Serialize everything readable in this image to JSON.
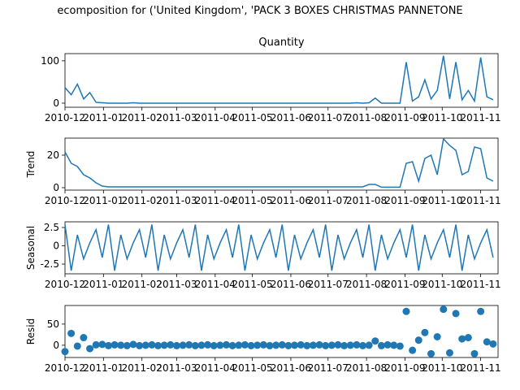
{
  "title": "ecomposition for ('United Kingdom', 'PACK 3 BOXES CHRISTMAS PANNETONE",
  "x": [
    0,
    5,
    10,
    15,
    20,
    25,
    30,
    35,
    40,
    45,
    50,
    55,
    60,
    65,
    70,
    75,
    80,
    85,
    90,
    95,
    100,
    105,
    110,
    115,
    120,
    125,
    130,
    135,
    140,
    145,
    150,
    155,
    160,
    165,
    170,
    175,
    180,
    185,
    190,
    195,
    200,
    205,
    210,
    215,
    220,
    225,
    230,
    235,
    240,
    245,
    250,
    255,
    260,
    265,
    270,
    275,
    280,
    285,
    290,
    295,
    300,
    305,
    310,
    315,
    320,
    325,
    330,
    335,
    340,
    345
  ],
  "xlim": [
    0,
    349
  ],
  "xticks": [
    {
      "value": 0,
      "label": "2010-12"
    },
    {
      "value": 31,
      "label": "2011-01"
    },
    {
      "value": 62,
      "label": "2011-02"
    },
    {
      "value": 90,
      "label": "2011-03"
    },
    {
      "value": 121,
      "label": "2011-04"
    },
    {
      "value": 151,
      "label": "2011-05"
    },
    {
      "value": 182,
      "label": "2011-06"
    },
    {
      "value": 212,
      "label": "2011-07"
    },
    {
      "value": 243,
      "label": "2011-08"
    },
    {
      "value": 274,
      "label": "2011-09"
    },
    {
      "value": 304,
      "label": "2011-10"
    },
    {
      "value": 335,
      "label": "2011-11"
    }
  ],
  "chart_data": [
    {
      "type": "line",
      "title": "Quantity",
      "color": "#1f77b4",
      "ylim": [
        -9.6,
        117
      ],
      "yticks": [
        0,
        100
      ],
      "values": [
        37,
        20,
        45,
        10,
        25,
        2,
        1,
        0,
        0,
        0,
        0,
        1,
        0,
        0,
        0,
        0,
        0,
        0,
        0,
        0,
        0,
        0,
        0,
        0,
        0,
        0,
        0,
        0,
        0,
        0,
        0,
        0,
        0,
        0,
        0,
        0,
        0,
        0,
        0,
        0,
        0,
        0,
        0,
        0,
        0,
        0,
        0,
        1,
        0,
        1,
        12,
        0,
        0,
        0,
        0,
        97,
        5,
        15,
        55,
        10,
        30,
        112,
        10,
        97,
        8,
        30,
        5,
        108,
        15,
        8
      ]
    },
    {
      "type": "line",
      "ylabel": "Trend",
      "color": "#1f77b4",
      "ylim": [
        -1.5,
        30.5
      ],
      "yticks": [
        0,
        20
      ],
      "values": [
        22,
        15,
        13,
        8,
        6,
        3,
        1,
        0.5,
        0.5,
        0.5,
        0.5,
        0.5,
        0.5,
        0.5,
        0.5,
        0.5,
        0.5,
        0.5,
        0.5,
        0.5,
        0.5,
        0.5,
        0.5,
        0.5,
        0.5,
        0.5,
        0.5,
        0.5,
        0.5,
        0.5,
        0.5,
        0.5,
        0.5,
        0.5,
        0.5,
        0.5,
        0.5,
        0.5,
        0.5,
        0.5,
        0.5,
        0.5,
        0.5,
        0.5,
        0.5,
        0.5,
        0.5,
        0.5,
        0.5,
        2,
        2,
        0.3,
        0.3,
        0.3,
        0.3,
        15,
        16,
        4,
        18,
        20,
        8,
        30,
        26,
        23,
        8,
        10,
        25,
        24,
        6,
        4
      ]
    },
    {
      "type": "line",
      "ylabel": "Seasonal",
      "color": "#1f77b4",
      "ylim": [
        -3.83,
        3.28
      ],
      "yticks": [
        -2.5,
        0.0,
        2.5
      ],
      "values": [
        2.9,
        -3.4,
        1.5,
        -1.8,
        0.4,
        2.2,
        -1.6,
        2.9,
        -3.4,
        1.5,
        -1.8,
        0.4,
        2.2,
        -1.6,
        2.9,
        -3.4,
        1.5,
        -1.8,
        0.4,
        2.2,
        -1.6,
        2.9,
        -3.4,
        1.5,
        -1.8,
        0.4,
        2.2,
        -1.6,
        2.9,
        -3.4,
        1.5,
        -1.8,
        0.4,
        2.2,
        -1.6,
        2.9,
        -3.4,
        1.5,
        -1.8,
        0.4,
        2.2,
        -1.6,
        2.9,
        -3.4,
        1.5,
        -1.8,
        0.4,
        2.2,
        -1.6,
        2.9,
        -3.4,
        1.5,
        -1.8,
        0.4,
        2.2,
        -1.6,
        2.9,
        -3.4,
        1.5,
        -1.8,
        0.4,
        2.2,
        -1.6,
        2.9,
        -3.4,
        1.5,
        -1.8,
        0.4,
        2.2,
        -1.6
      ]
    },
    {
      "type": "scatter",
      "ylabel": "Resid",
      "color": "#1f77b4",
      "ylim": [
        -29,
        94
      ],
      "yticks": [
        0,
        50
      ],
      "values": [
        -15,
        28,
        -2,
        18,
        -8,
        1,
        2,
        -1,
        1,
        0,
        -1,
        2,
        -1,
        0,
        1,
        -1,
        0,
        1,
        -1,
        0,
        1,
        -1,
        0,
        1,
        -1,
        0,
        1,
        -1,
        0,
        1,
        -1,
        0,
        1,
        -1,
        0,
        1,
        -1,
        0,
        1,
        -1,
        0,
        1,
        -1,
        0,
        1,
        -1,
        0,
        1,
        -1,
        0,
        10,
        -1,
        1,
        0,
        -2,
        80,
        -12,
        12,
        30,
        -20,
        20,
        85,
        -18,
        75,
        15,
        18,
        -20,
        80,
        8,
        3
      ]
    }
  ]
}
